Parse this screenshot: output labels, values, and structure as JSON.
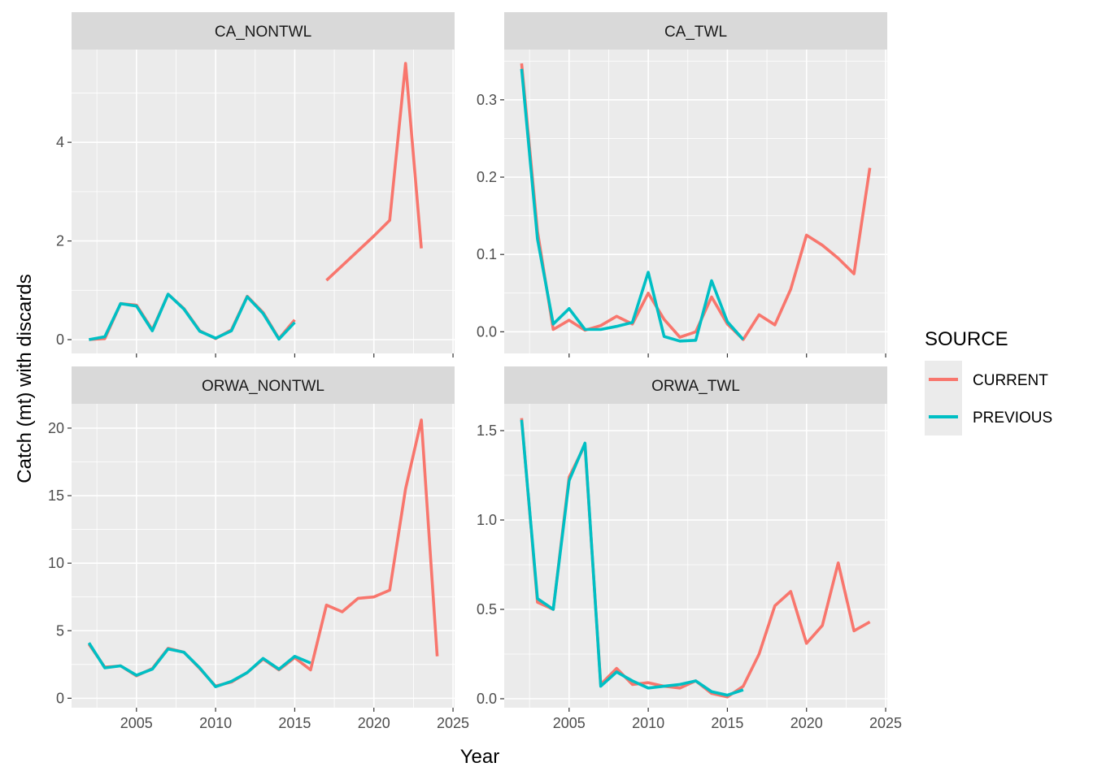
{
  "chart_data": {
    "type": "line",
    "xlabel": "Year",
    "ylabel": "Catch (mt) with discards",
    "x_ticks": [
      2005,
      2010,
      2015,
      2020,
      2025
    ],
    "legend": {
      "title": "SOURCE",
      "position": "right",
      "entries": [
        {
          "label": "CURRENT",
          "color": "#F8766D"
        },
        {
          "label": "PREVIOUS",
          "color": "#00BFC4"
        }
      ]
    },
    "panels": [
      {
        "strip": "CA_NONTWL",
        "xlim": [
          2000.9,
          2025.1
        ],
        "ylim": [
          -0.28,
          5.88
        ],
        "y_ticks": [
          0,
          2,
          4
        ],
        "y_tick_labels": [
          "0",
          "2",
          "4"
        ],
        "series": [
          {
            "name": "CURRENT",
            "segments": [
              [
                [
                  2002,
                  0.0
                ],
                [
                  2003,
                  0.02
                ],
                [
                  2004,
                  0.73
                ],
                [
                  2005,
                  0.7
                ],
                [
                  2006,
                  0.2
                ],
                [
                  2007,
                  0.92
                ],
                [
                  2008,
                  0.63
                ],
                [
                  2009,
                  0.18
                ],
                [
                  2010,
                  0.02
                ],
                [
                  2011,
                  0.2
                ],
                [
                  2012,
                  0.88
                ],
                [
                  2013,
                  0.55
                ],
                [
                  2014,
                  0.02
                ],
                [
                  2015,
                  0.4
                ]
              ],
              [
                [
                  2017,
                  1.2
                ],
                [
                  2018,
                  1.5
                ],
                [
                  2019,
                  1.8
                ],
                [
                  2020,
                  2.1
                ],
                [
                  2021,
                  2.42
                ],
                [
                  2022,
                  5.6
                ],
                [
                  2023,
                  1.85
                ]
              ]
            ]
          },
          {
            "name": "PREVIOUS",
            "segments": [
              [
                [
                  2002,
                  0.0
                ],
                [
                  2003,
                  0.06
                ],
                [
                  2004,
                  0.73
                ],
                [
                  2005,
                  0.68
                ],
                [
                  2006,
                  0.18
                ],
                [
                  2007,
                  0.92
                ],
                [
                  2008,
                  0.62
                ],
                [
                  2009,
                  0.17
                ],
                [
                  2010,
                  0.03
                ],
                [
                  2011,
                  0.18
                ],
                [
                  2012,
                  0.87
                ],
                [
                  2013,
                  0.53
                ],
                [
                  2014,
                  0.01
                ],
                [
                  2015,
                  0.35
                ]
              ]
            ]
          }
        ]
      },
      {
        "strip": "CA_TWL",
        "xlim": [
          2000.9,
          2025.1
        ],
        "ylim": [
          -0.028,
          0.365
        ],
        "y_ticks": [
          0.0,
          0.1,
          0.2,
          0.3
        ],
        "y_tick_labels": [
          "0.0",
          "0.1",
          "0.2",
          "0.3"
        ],
        "series": [
          {
            "name": "CURRENT",
            "segments": [
              [
                [
                  2002,
                  0.347
                ],
                [
                  2003,
                  0.13
                ],
                [
                  2004,
                  0.003
                ],
                [
                  2005,
                  0.015
                ],
                [
                  2006,
                  0.002
                ],
                [
                  2007,
                  0.008
                ],
                [
                  2008,
                  0.02
                ],
                [
                  2009,
                  0.01
                ],
                [
                  2010,
                  0.05
                ],
                [
                  2011,
                  0.016
                ],
                [
                  2012,
                  -0.007
                ],
                [
                  2013,
                  0.0
                ],
                [
                  2014,
                  0.045
                ],
                [
                  2015,
                  0.01
                ],
                [
                  2016,
                  -0.01
                ],
                [
                  2017,
                  0.022
                ],
                [
                  2018,
                  0.009
                ],
                [
                  2019,
                  0.055
                ],
                [
                  2020,
                  0.125
                ],
                [
                  2021,
                  0.112
                ],
                [
                  2022,
                  0.095
                ],
                [
                  2023,
                  0.075
                ],
                [
                  2024,
                  0.212
                ]
              ]
            ]
          },
          {
            "name": "PREVIOUS",
            "segments": [
              [
                [
                  2002,
                  0.34
                ],
                [
                  2003,
                  0.12
                ],
                [
                  2004,
                  0.01
                ],
                [
                  2005,
                  0.03
                ],
                [
                  2006,
                  0.003
                ],
                [
                  2007,
                  0.003
                ],
                [
                  2008,
                  0.007
                ],
                [
                  2009,
                  0.012
                ],
                [
                  2010,
                  0.077
                ],
                [
                  2011,
                  -0.006
                ],
                [
                  2012,
                  -0.012
                ],
                [
                  2013,
                  -0.011
                ],
                [
                  2014,
                  0.066
                ],
                [
                  2015,
                  0.013
                ],
                [
                  2016,
                  -0.01
                ]
              ]
            ]
          }
        ]
      },
      {
        "strip": "ORWA_NONTWL",
        "xlim": [
          2000.9,
          2025.1
        ],
        "ylim": [
          -0.7,
          21.8
        ],
        "y_ticks": [
          0,
          5,
          10,
          15,
          20
        ],
        "y_tick_labels": [
          "0",
          "5",
          "10",
          "15",
          "20"
        ],
        "series": [
          {
            "name": "CURRENT",
            "segments": [
              [
                [
                  2002,
                  4.0
                ],
                [
                  2003,
                  2.3
                ],
                [
                  2004,
                  2.4
                ],
                [
                  2005,
                  1.65
                ],
                [
                  2006,
                  2.2
                ],
                [
                  2007,
                  3.7
                ],
                [
                  2008,
                  3.4
                ],
                [
                  2009,
                  2.2
                ],
                [
                  2010,
                  0.9
                ],
                [
                  2011,
                  1.2
                ],
                [
                  2012,
                  1.9
                ],
                [
                  2013,
                  2.9
                ],
                [
                  2014,
                  2.1
                ],
                [
                  2015,
                  3.0
                ],
                [
                  2016,
                  2.1
                ],
                [
                  2017,
                  6.9
                ],
                [
                  2018,
                  6.4
                ],
                [
                  2019,
                  7.4
                ],
                [
                  2020,
                  7.5
                ],
                [
                  2021,
                  8.0
                ],
                [
                  2022,
                  15.5
                ],
                [
                  2023,
                  20.6
                ],
                [
                  2024,
                  3.1
                ]
              ]
            ]
          },
          {
            "name": "PREVIOUS",
            "segments": [
              [
                [
                  2002,
                  4.1
                ],
                [
                  2003,
                  2.25
                ],
                [
                  2004,
                  2.4
                ],
                [
                  2005,
                  1.7
                ],
                [
                  2006,
                  2.15
                ],
                [
                  2007,
                  3.65
                ],
                [
                  2008,
                  3.4
                ],
                [
                  2009,
                  2.25
                ],
                [
                  2010,
                  0.85
                ],
                [
                  2011,
                  1.25
                ],
                [
                  2012,
                  1.9
                ],
                [
                  2013,
                  2.95
                ],
                [
                  2014,
                  2.15
                ],
                [
                  2015,
                  3.1
                ],
                [
                  2016,
                  2.6
                ]
              ]
            ]
          }
        ]
      },
      {
        "strip": "ORWA_TWL",
        "xlim": [
          2000.9,
          2025.1
        ],
        "ylim": [
          -0.05,
          1.65
        ],
        "y_ticks": [
          0.0,
          0.5,
          1.0,
          1.5
        ],
        "y_tick_labels": [
          "0.0",
          "0.5",
          "1.0",
          "1.5"
        ],
        "series": [
          {
            "name": "CURRENT",
            "segments": [
              [
                [
                  2002,
                  1.57
                ],
                [
                  2003,
                  0.54
                ],
                [
                  2004,
                  0.5
                ],
                [
                  2005,
                  1.24
                ],
                [
                  2006,
                  1.42
                ],
                [
                  2007,
                  0.08
                ],
                [
                  2008,
                  0.17
                ],
                [
                  2009,
                  0.08
                ],
                [
                  2010,
                  0.09
                ],
                [
                  2011,
                  0.07
                ],
                [
                  2012,
                  0.06
                ],
                [
                  2013,
                  0.1
                ],
                [
                  2014,
                  0.03
                ],
                [
                  2015,
                  0.01
                ],
                [
                  2016,
                  0.07
                ],
                [
                  2017,
                  0.25
                ],
                [
                  2018,
                  0.52
                ],
                [
                  2019,
                  0.6
                ],
                [
                  2020,
                  0.31
                ],
                [
                  2021,
                  0.41
                ],
                [
                  2022,
                  0.76
                ],
                [
                  2023,
                  0.38
                ],
                [
                  2024,
                  0.43
                ]
              ]
            ]
          },
          {
            "name": "PREVIOUS",
            "segments": [
              [
                [
                  2002,
                  1.56
                ],
                [
                  2003,
                  0.56
                ],
                [
                  2004,
                  0.5
                ],
                [
                  2005,
                  1.22
                ],
                [
                  2006,
                  1.43
                ],
                [
                  2007,
                  0.07
                ],
                [
                  2008,
                  0.15
                ],
                [
                  2009,
                  0.1
                ],
                [
                  2010,
                  0.06
                ],
                [
                  2011,
                  0.07
                ],
                [
                  2012,
                  0.08
                ],
                [
                  2013,
                  0.1
                ],
                [
                  2014,
                  0.04
                ],
                [
                  2015,
                  0.02
                ],
                [
                  2016,
                  0.05
                ]
              ]
            ]
          }
        ]
      }
    ]
  }
}
